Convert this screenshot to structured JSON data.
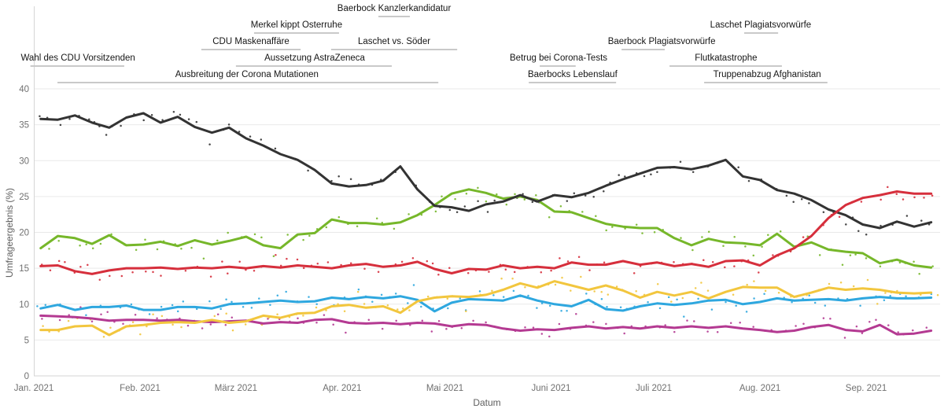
{
  "chart_data": {
    "type": "line",
    "title": "",
    "xlabel": "Datum",
    "ylabel": "Umfrageergebnis (%)",
    "x_unit": "day_of_year_2021",
    "xlim_days": [
      0,
      266
    ],
    "ylim": [
      0,
      40
    ],
    "grid": "horizontal",
    "legend": "none",
    "y_ticks": [
      0,
      5,
      10,
      15,
      20,
      25,
      30,
      35,
      40
    ],
    "x_ticks": [
      {
        "label": "Jan. 2021",
        "day": 0
      },
      {
        "label": "Feb. 2021",
        "day": 31
      },
      {
        "label": "März 2021",
        "day": 59
      },
      {
        "label": "Apr. 2021",
        "day": 90
      },
      {
        "label": "Mai 2021",
        "day": 120
      },
      {
        "label": "Juni 2021",
        "day": 151
      },
      {
        "label": "Juli 2021",
        "day": 181
      },
      {
        "label": "Aug. 2021",
        "day": 212
      },
      {
        "label": "Sep. 2021",
        "day": 243
      }
    ],
    "days": [
      2,
      7,
      12,
      17,
      22,
      27,
      32,
      37,
      42,
      47,
      52,
      57,
      62,
      67,
      72,
      77,
      82,
      87,
      92,
      97,
      102,
      107,
      112,
      117,
      122,
      127,
      132,
      137,
      142,
      147,
      152,
      157,
      162,
      167,
      172,
      177,
      182,
      187,
      192,
      197,
      202,
      207,
      212,
      217,
      222,
      227,
      232,
      237,
      242,
      247,
      252,
      257,
      262
    ],
    "series": [
      {
        "name": "magenta-line",
        "color": "#b43a92",
        "values": [
          8.4,
          8.3,
          8.2,
          8.0,
          7.7,
          7.8,
          7.8,
          7.7,
          7.8,
          7.6,
          7.5,
          7.6,
          7.7,
          7.3,
          7.5,
          7.4,
          7.8,
          7.9,
          7.4,
          7.3,
          7.4,
          7.2,
          7.4,
          7.3,
          6.9,
          7.2,
          7.1,
          6.6,
          6.3,
          6.5,
          6.4,
          6.7,
          6.9,
          6.6,
          6.8,
          6.6,
          6.9,
          6.7,
          6.9,
          6.7,
          6.9,
          6.6,
          6.4,
          6.1,
          6.3,
          6.8,
          7.1,
          6.4,
          6.2,
          7.1,
          5.8,
          5.9,
          6.3
        ]
      },
      {
        "name": "blue-line",
        "color": "#2ea7df",
        "values": [
          9.4,
          9.9,
          9.2,
          9.6,
          9.6,
          9.8,
          9.2,
          9.2,
          9.6,
          9.6,
          9.4,
          10.0,
          10.1,
          10.3,
          10.5,
          10.3,
          10.4,
          10.9,
          10.7,
          11.0,
          10.8,
          11.1,
          10.6,
          9.0,
          10.2,
          10.7,
          10.6,
          10.5,
          11.2,
          10.5,
          10.0,
          9.7,
          10.6,
          9.3,
          9.1,
          9.7,
          10.1,
          9.9,
          10.1,
          10.5,
          10.6,
          10.0,
          10.3,
          10.8,
          10.5,
          10.6,
          10.7,
          10.5,
          10.8,
          11.0,
          10.8,
          10.8,
          10.9
        ]
      },
      {
        "name": "yellow-line",
        "color": "#f2c63e",
        "values": [
          6.4,
          6.4,
          6.9,
          7.0,
          5.7,
          6.9,
          7.1,
          7.4,
          7.5,
          7.4,
          7.8,
          7.4,
          7.6,
          8.4,
          8.1,
          8.7,
          8.8,
          9.7,
          9.9,
          9.5,
          9.7,
          8.8,
          10.4,
          10.9,
          11.1,
          11.0,
          11.3,
          12.0,
          12.9,
          12.3,
          13.2,
          12.6,
          12.0,
          12.6,
          11.9,
          10.9,
          11.7,
          11.2,
          11.7,
          10.8,
          11.7,
          12.4,
          12.3,
          12.3,
          11.0,
          11.6,
          12.3,
          12.0,
          12.2,
          12.0,
          11.6,
          11.5,
          11.6
        ]
      },
      {
        "name": "green-line",
        "color": "#76b72a",
        "values": [
          17.8,
          19.5,
          19.2,
          18.4,
          19.6,
          18.2,
          18.3,
          18.7,
          18.1,
          18.9,
          18.3,
          18.8,
          19.4,
          18.2,
          17.8,
          19.7,
          19.9,
          21.8,
          21.3,
          21.3,
          21.1,
          21.4,
          22.4,
          23.8,
          25.4,
          26.0,
          25.5,
          24.7,
          25.0,
          24.5,
          22.9,
          22.8,
          22.0,
          21.2,
          20.8,
          20.6,
          20.6,
          19.2,
          18.2,
          19.1,
          18.6,
          18.5,
          18.2,
          19.8,
          18.0,
          18.6,
          17.6,
          17.3,
          17.1,
          15.7,
          16.2,
          15.4,
          15.1
        ]
      },
      {
        "name": "black-line",
        "color": "#333333",
        "values": [
          35.8,
          35.7,
          36.3,
          35.3,
          34.6,
          36.0,
          36.6,
          35.3,
          36.1,
          34.7,
          33.9,
          34.6,
          33.1,
          32.1,
          30.9,
          30.1,
          28.7,
          26.8,
          26.4,
          26.6,
          27.2,
          29.2,
          26.0,
          23.7,
          23.5,
          23.0,
          23.9,
          24.3,
          25.2,
          24.3,
          25.2,
          24.9,
          25.5,
          26.5,
          27.4,
          28.2,
          29.0,
          29.1,
          28.8,
          29.3,
          30.1,
          27.8,
          27.3,
          25.9,
          25.4,
          24.5,
          23.2,
          22.4,
          21.1,
          20.6,
          21.5,
          20.8,
          21.4
        ]
      },
      {
        "name": "red-line",
        "color": "#d62f3c",
        "values": [
          15.3,
          15.4,
          14.6,
          14.2,
          14.7,
          15.0,
          15.0,
          15.1,
          14.9,
          15.1,
          15.0,
          15.2,
          15.0,
          15.3,
          15.1,
          15.4,
          15.2,
          15.0,
          15.4,
          15.6,
          15.2,
          15.4,
          15.9,
          14.9,
          14.3,
          14.9,
          14.8,
          15.4,
          15.0,
          15.2,
          15.0,
          15.8,
          15.5,
          15.5,
          16.0,
          15.5,
          15.8,
          15.3,
          15.6,
          15.2,
          16.0,
          16.1,
          15.4,
          16.8,
          17.8,
          19.5,
          22.0,
          23.8,
          24.8,
          25.2,
          25.7,
          25.4,
          25.4
        ]
      }
    ],
    "scatter": {
      "seed": 20210926,
      "max_jitter": 1.35,
      "min_step_days": 1.5,
      "rand_step_days": 2.8,
      "dot_radius": 1.25
    },
    "events": [
      {
        "label": "Baerbock Kanzlerkandidatur",
        "row": 1,
        "d1": 100.6,
        "d2": 109.8,
        "text_day": 105.2
      },
      {
        "label": "Merkel kippt Osterruhe",
        "row": 2,
        "d1": 64.3,
        "d2": 89.1,
        "text_day": 76.7
      },
      {
        "label": "Laschet Plagiatsvorwürfe",
        "row": 2,
        "d1": 207.4,
        "d2": 217.3,
        "text_day": 212.2
      },
      {
        "label": "CDU Maskenaffäre",
        "row": 3,
        "d1": 48.9,
        "d2": 77.9,
        "text_day": 63.4
      },
      {
        "label": "Laschet vs. Söder",
        "row": 3,
        "d1": 86.8,
        "d2": 123.6,
        "text_day": 105.2
      },
      {
        "label": "Baerbock Plagiatsvorwürfe",
        "row": 3,
        "d1": 171.6,
        "d2": 184.2,
        "text_day": 183.3
      },
      {
        "label": "Wahl des CDU Vorsitzenden",
        "row": 4,
        "d1": -1.0,
        "d2": 26.4,
        "text_day": 12.9
      },
      {
        "label": "Aussetzung AstraZeneca",
        "row": 4,
        "d1": 59.0,
        "d2": 104.5,
        "text_day": 82.0
      },
      {
        "label": "Betrug bei Corona-Tests",
        "row": 4,
        "d1": 147.7,
        "d2": 158.2,
        "text_day": 153.2
      },
      {
        "label": "Flutkatastrophe",
        "row": 4,
        "d1": 185.6,
        "d2": 218.4,
        "text_day": 202.1
      },
      {
        "label": "Ausbreitung der Corona Mutationen",
        "row": 5,
        "d1": 6.9,
        "d2": 118.1,
        "text_day": 62.2
      },
      {
        "label": "Baerbocks Lebenslauf",
        "row": 5,
        "d1": 144.5,
        "d2": 170.0,
        "text_day": 157.3
      },
      {
        "label": "Truppenabzug Afghanistan",
        "row": 5,
        "d1": 195.7,
        "d2": 231.7,
        "text_day": 214.1
      }
    ],
    "colors": {
      "grid": "#e9e9e9",
      "axis": "#d6d6d6",
      "event_bar": "#c9c9c9",
      "tick_text": "#707070",
      "axis_title_text": "#5f5f5f",
      "event_text": "#161616"
    }
  }
}
